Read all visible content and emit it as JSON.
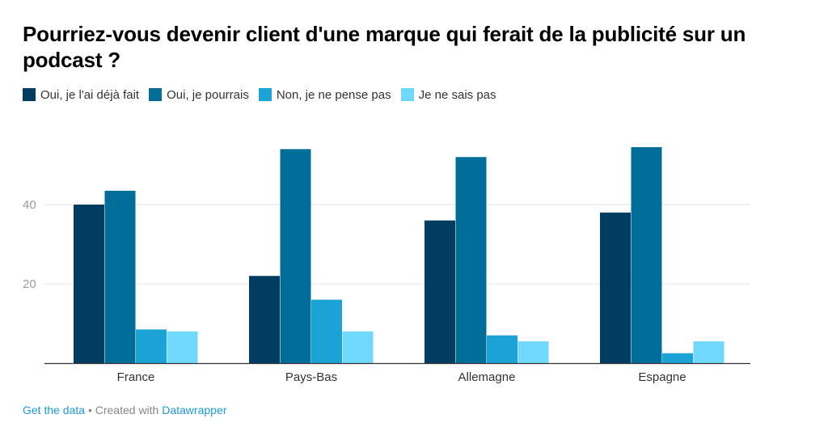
{
  "chart_data": {
    "type": "bar",
    "title": "Pourriez-vous devenir client d'une marque qui ferait de la publicité sur un podcast ?",
    "categories": [
      "France",
      "Pays-Bas",
      "Allemagne",
      "Espagne"
    ],
    "series": [
      {
        "name": "Oui, je l'ai déjà fait",
        "values": [
          40,
          22,
          36,
          38
        ],
        "color": "#003d60"
      },
      {
        "name": "Oui, je pourrais",
        "values": [
          43.5,
          54,
          52,
          54.5
        ],
        "color": "#006d99"
      },
      {
        "name": "Non, je ne pense pas",
        "values": [
          8.5,
          16,
          7,
          2.5
        ],
        "color": "#1ba3d6"
      },
      {
        "name": "Je ne sais pas",
        "values": [
          8,
          8,
          5.5,
          5.5
        ],
        "color": "#6fd9fb"
      }
    ],
    "yticks": [
      20,
      40
    ],
    "ylim": [
      0,
      60
    ],
    "grid": true,
    "legend_position": "top-left"
  },
  "footer": {
    "get_data": "Get the data",
    "separator": " • Created with ",
    "tool": "Datawrapper"
  }
}
